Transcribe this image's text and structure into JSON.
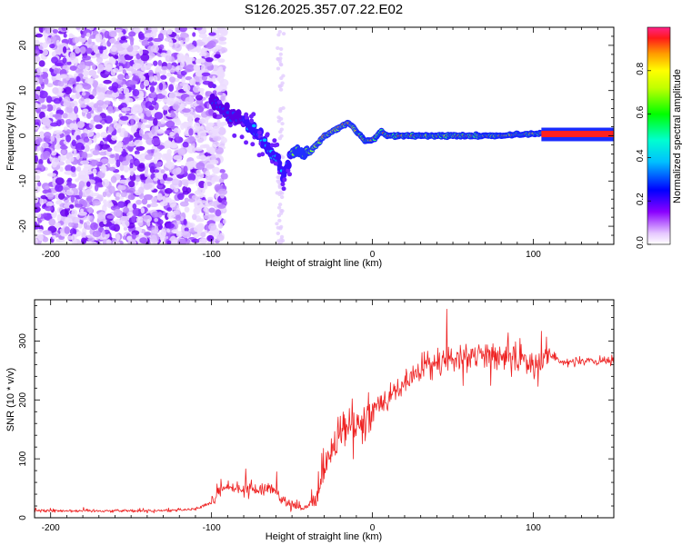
{
  "title": "S126.2025.357.07.22.E02",
  "chart_data": [
    {
      "type": "heatmap",
      "description_of_series": "spectrogram: ridge frequency vs height",
      "xlabel": "Height of straight line (km)",
      "ylabel": "Frequency (Hz)",
      "xlim": [
        -210,
        150
      ],
      "ylim": [
        -24,
        24
      ],
      "xticks": [
        -200,
        -100,
        0,
        100
      ],
      "yticks": [
        -20,
        -10,
        0,
        10,
        20
      ],
      "ridge": {
        "x": [
          -100,
          -90,
          -80,
          -70,
          -60,
          -55,
          -50,
          -45,
          -40,
          -35,
          -30,
          -25,
          -20,
          -15,
          -10,
          -5,
          0,
          5,
          10,
          20,
          40,
          60,
          80,
          100,
          105,
          150
        ],
        "y": [
          8,
          5,
          3,
          0,
          -5,
          -9,
          -3,
          -4,
          -4,
          -2,
          0,
          1,
          2,
          3,
          1,
          -1,
          -1,
          1,
          0,
          0,
          0,
          0,
          0,
          0.5,
          0.5,
          0.5
        ]
      },
      "colorbar": {
        "label": "Normalized spectral amplitude",
        "range": [
          0.0,
          1.0
        ],
        "ticks": [
          "0.0",
          "0.2",
          "0.4",
          "0.6",
          "0.8"
        ]
      }
    },
    {
      "type": "line",
      "xlabel": "Height of straight line (km)",
      "ylabel": "SNR (10 * v/v)",
      "xlim": [
        -210,
        150
      ],
      "ylim": [
        0,
        370
      ],
      "xticks": [
        -200,
        -100,
        0,
        100
      ],
      "yticks": [
        0,
        100,
        200,
        300
      ],
      "color": "#ee2222",
      "series": [
        {
          "name": "SNR",
          "x": [
            -210,
            -170,
            -130,
            -110,
            -100,
            -95,
            -90,
            -85,
            -80,
            -75,
            -70,
            -65,
            -60,
            -55,
            -50,
            -45,
            -40,
            -35,
            -30,
            -25,
            -20,
            -15,
            -10,
            -5,
            0,
            5,
            10,
            20,
            30,
            40,
            50,
            60,
            70,
            80,
            90,
            100,
            110,
            120,
            130,
            150
          ],
          "y": [
            12,
            12,
            12,
            15,
            25,
            45,
            55,
            45,
            50,
            48,
            45,
            50,
            48,
            30,
            22,
            15,
            18,
            35,
            80,
            120,
            145,
            150,
            155,
            170,
            185,
            195,
            205,
            230,
            250,
            265,
            270,
            275,
            275,
            275,
            270,
            265,
            275,
            265,
            265,
            265
          ]
        }
      ]
    }
  ]
}
